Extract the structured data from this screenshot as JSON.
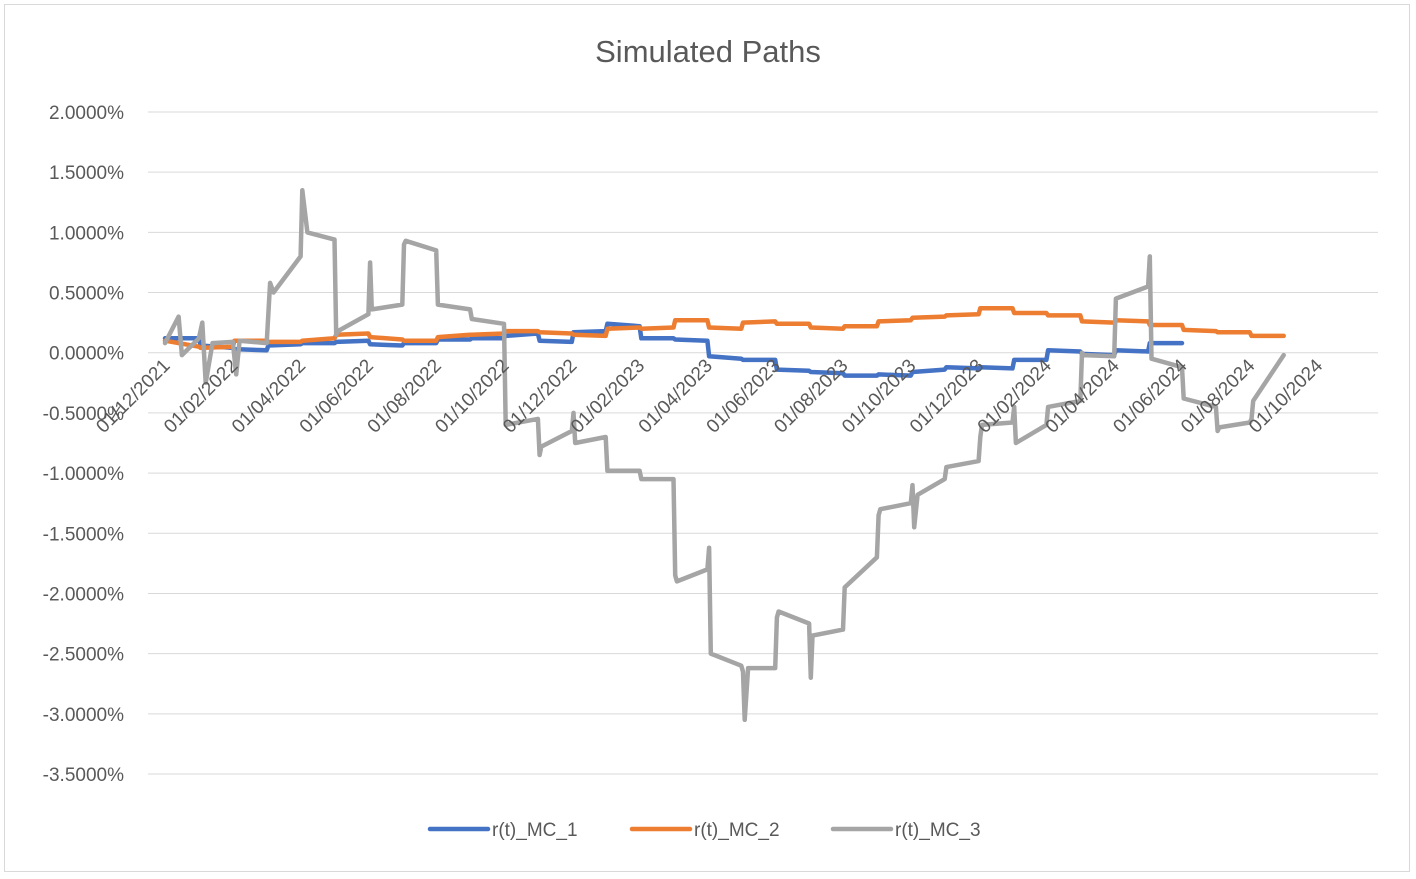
{
  "chart_data": {
    "type": "line",
    "title": "Simulated Paths",
    "xlabel": "",
    "ylabel": "",
    "x_tick_labels": [
      "01/12/2021",
      "01/02/2022",
      "01/04/2022",
      "01/06/2022",
      "01/08/2022",
      "01/10/2022",
      "01/12/2022",
      "01/02/2023",
      "01/04/2023",
      "01/06/2023",
      "01/08/2023",
      "01/10/2023",
      "01/12/2023",
      "01/02/2024",
      "01/04/2024",
      "01/06/2024",
      "01/08/2024",
      "01/10/2024"
    ],
    "y_tick_labels": [
      "2.0000%",
      "1.5000%",
      "1.0000%",
      "0.5000%",
      "0.0000%",
      "-0.5000%",
      "-1.0000%",
      "-1.5000%",
      "-2.0000%",
      "-2.5000%",
      "-3.0000%",
      "-3.5000%"
    ],
    "ylim": [
      -3.5,
      2.0
    ],
    "xlim": [
      0,
      36
    ],
    "x_unit": "months since 01/12/2021",
    "grid": true,
    "legend_position": "bottom",
    "colors": [
      "#4472c4",
      "#ed7d31",
      "#a5a5a5"
    ],
    "series": [
      {
        "name": "r(t)_MC_1",
        "points": [
          [
            0,
            0.12
          ],
          [
            1,
            0.12
          ],
          [
            1.05,
            0.06
          ],
          [
            2,
            0.04
          ],
          [
            2.05,
            0.03
          ],
          [
            3,
            0.02
          ],
          [
            3.05,
            0.06
          ],
          [
            4,
            0.07
          ],
          [
            4.05,
            0.08
          ],
          [
            5,
            0.08
          ],
          [
            5.05,
            0.09
          ],
          [
            6,
            0.1
          ],
          [
            6.05,
            0.07
          ],
          [
            7,
            0.06
          ],
          [
            7.05,
            0.08
          ],
          [
            8,
            0.08
          ],
          [
            8.05,
            0.11
          ],
          [
            9,
            0.11
          ],
          [
            9.05,
            0.12
          ],
          [
            10,
            0.12
          ],
          [
            10.05,
            0.14
          ],
          [
            11,
            0.16
          ],
          [
            11.05,
            0.1
          ],
          [
            12,
            0.09
          ],
          [
            12.05,
            0.17
          ],
          [
            13,
            0.18
          ],
          [
            13.05,
            0.24
          ],
          [
            14,
            0.22
          ],
          [
            14.05,
            0.12
          ],
          [
            15,
            0.12
          ],
          [
            15.05,
            0.11
          ],
          [
            16,
            0.1
          ],
          [
            16.05,
            -0.03
          ],
          [
            17,
            -0.05
          ],
          [
            17.05,
            -0.06
          ],
          [
            18,
            -0.06
          ],
          [
            18.05,
            -0.14
          ],
          [
            19,
            -0.15
          ],
          [
            19.05,
            -0.16
          ],
          [
            20,
            -0.17
          ],
          [
            20.05,
            -0.19
          ],
          [
            21,
            -0.19
          ],
          [
            21.05,
            -0.18
          ],
          [
            22,
            -0.19
          ],
          [
            22.05,
            -0.16
          ],
          [
            23,
            -0.14
          ],
          [
            23.05,
            -0.12
          ],
          [
            24,
            -0.13
          ],
          [
            24.05,
            -0.12
          ],
          [
            25,
            -0.13
          ],
          [
            25.05,
            -0.06
          ],
          [
            26,
            -0.06
          ],
          [
            26.05,
            0.02
          ],
          [
            27,
            0.01
          ],
          [
            27.05,
            -0.01
          ],
          [
            28,
            -0.02
          ],
          [
            28.05,
            0.02
          ],
          [
            29,
            0.01
          ],
          [
            29.05,
            0.08
          ],
          [
            30,
            0.08
          ]
        ]
      },
      {
        "name": "r(t)_MC_2",
        "points": [
          [
            0,
            0.1
          ],
          [
            1,
            0.05
          ],
          [
            1.05,
            0.04
          ],
          [
            2,
            0.05
          ],
          [
            2.05,
            0.1
          ],
          [
            3,
            0.1
          ],
          [
            3.05,
            0.09
          ],
          [
            4,
            0.09
          ],
          [
            4.05,
            0.1
          ],
          [
            5,
            0.12
          ],
          [
            5.05,
            0.15
          ],
          [
            6,
            0.16
          ],
          [
            6.05,
            0.13
          ],
          [
            7,
            0.11
          ],
          [
            7.05,
            0.1
          ],
          [
            8,
            0.1
          ],
          [
            8.05,
            0.13
          ],
          [
            9,
            0.15
          ],
          [
            9.05,
            0.15
          ],
          [
            10,
            0.16
          ],
          [
            10.05,
            0.18
          ],
          [
            11,
            0.18
          ],
          [
            11.05,
            0.17
          ],
          [
            12,
            0.16
          ],
          [
            12.05,
            0.15
          ],
          [
            13,
            0.14
          ],
          [
            13.05,
            0.2
          ],
          [
            14,
            0.21
          ],
          [
            14.05,
            0.2
          ],
          [
            15,
            0.21
          ],
          [
            15.05,
            0.27
          ],
          [
            16,
            0.27
          ],
          [
            16.05,
            0.21
          ],
          [
            17,
            0.2
          ],
          [
            17.05,
            0.25
          ],
          [
            18,
            0.26
          ],
          [
            18.05,
            0.24
          ],
          [
            19,
            0.24
          ],
          [
            19.05,
            0.21
          ],
          [
            20,
            0.2
          ],
          [
            20.05,
            0.22
          ],
          [
            21,
            0.22
          ],
          [
            21.05,
            0.26
          ],
          [
            22,
            0.27
          ],
          [
            22.05,
            0.29
          ],
          [
            23,
            0.3
          ],
          [
            23.05,
            0.31
          ],
          [
            24,
            0.32
          ],
          [
            24.05,
            0.37
          ],
          [
            25,
            0.37
          ],
          [
            25.05,
            0.33
          ],
          [
            26,
            0.33
          ],
          [
            26.05,
            0.31
          ],
          [
            27,
            0.31
          ],
          [
            27.05,
            0.26
          ],
          [
            28,
            0.25
          ],
          [
            28.05,
            0.27
          ],
          [
            29,
            0.26
          ],
          [
            29.05,
            0.23
          ],
          [
            30,
            0.23
          ],
          [
            30.05,
            0.19
          ],
          [
            31,
            0.18
          ],
          [
            31.05,
            0.17
          ],
          [
            32,
            0.17
          ],
          [
            32.05,
            0.14
          ],
          [
            33,
            0.14
          ]
        ]
      },
      {
        "name": "r(t)_MC_3",
        "points": [
          [
            0,
            0.08
          ],
          [
            0.4,
            0.3
          ],
          [
            0.5,
            -0.02
          ],
          [
            1,
            0.12
          ],
          [
            1.1,
            0.25
          ],
          [
            1.2,
            -0.25
          ],
          [
            1.4,
            0.08
          ],
          [
            2,
            0.09
          ],
          [
            2.1,
            -0.18
          ],
          [
            2.2,
            0.1
          ],
          [
            3,
            0.08
          ],
          [
            3.1,
            0.58
          ],
          [
            3.2,
            0.5
          ],
          [
            4,
            0.8
          ],
          [
            4.05,
            1.35
          ],
          [
            4.2,
            1.0
          ],
          [
            5,
            0.94
          ],
          [
            5.05,
            0.15
          ],
          [
            5.1,
            0.18
          ],
          [
            6,
            0.32
          ],
          [
            6.05,
            0.75
          ],
          [
            6.1,
            0.36
          ],
          [
            7,
            0.4
          ],
          [
            7.05,
            0.9
          ],
          [
            7.1,
            0.93
          ],
          [
            8,
            0.85
          ],
          [
            8.05,
            0.4
          ],
          [
            9,
            0.36
          ],
          [
            9.05,
            0.28
          ],
          [
            10,
            0.24
          ],
          [
            10.05,
            -0.6
          ],
          [
            11,
            -0.55
          ],
          [
            11.05,
            -0.85
          ],
          [
            11.1,
            -0.78
          ],
          [
            12,
            -0.65
          ],
          [
            12.05,
            -0.5
          ],
          [
            12.1,
            -0.75
          ],
          [
            13,
            -0.7
          ],
          [
            13.05,
            -0.98
          ],
          [
            14,
            -0.98
          ],
          [
            14.05,
            -1.05
          ],
          [
            15,
            -1.05
          ],
          [
            15.05,
            -1.85
          ],
          [
            15.1,
            -1.9
          ],
          [
            16,
            -1.8
          ],
          [
            16.05,
            -1.62
          ],
          [
            16.1,
            -2.5
          ],
          [
            17,
            -2.6
          ],
          [
            17.05,
            -2.65
          ],
          [
            17.1,
            -3.05
          ],
          [
            17.2,
            -2.62
          ],
          [
            18,
            -2.62
          ],
          [
            18.05,
            -2.2
          ],
          [
            18.1,
            -2.15
          ],
          [
            19,
            -2.25
          ],
          [
            19.05,
            -2.7
          ],
          [
            19.1,
            -2.35
          ],
          [
            20,
            -2.3
          ],
          [
            20.05,
            -1.95
          ],
          [
            21,
            -1.7
          ],
          [
            21.05,
            -1.35
          ],
          [
            21.1,
            -1.3
          ],
          [
            22,
            -1.25
          ],
          [
            22.05,
            -1.1
          ],
          [
            22.1,
            -1.45
          ],
          [
            22.2,
            -1.18
          ],
          [
            23,
            -1.05
          ],
          [
            23.05,
            -0.95
          ],
          [
            24,
            -0.9
          ],
          [
            24.05,
            -0.7
          ],
          [
            24.1,
            -0.6
          ],
          [
            25,
            -0.58
          ],
          [
            25.05,
            -0.45
          ],
          [
            25.1,
            -0.75
          ],
          [
            26,
            -0.6
          ],
          [
            26.05,
            -0.45
          ],
          [
            27,
            -0.4
          ],
          [
            27.05,
            0.0
          ],
          [
            27.1,
            -0.02
          ],
          [
            28,
            -0.03
          ],
          [
            28.05,
            0.45
          ],
          [
            29,
            0.55
          ],
          [
            29.05,
            0.8
          ],
          [
            29.1,
            -0.05
          ],
          [
            30,
            -0.12
          ],
          [
            30.05,
            -0.38
          ],
          [
            31,
            -0.45
          ],
          [
            31.05,
            -0.65
          ],
          [
            31.1,
            -0.62
          ],
          [
            32,
            -0.58
          ],
          [
            32.05,
            -0.55
          ],
          [
            32.1,
            -0.4
          ],
          [
            33,
            -0.02
          ]
        ]
      }
    ]
  }
}
